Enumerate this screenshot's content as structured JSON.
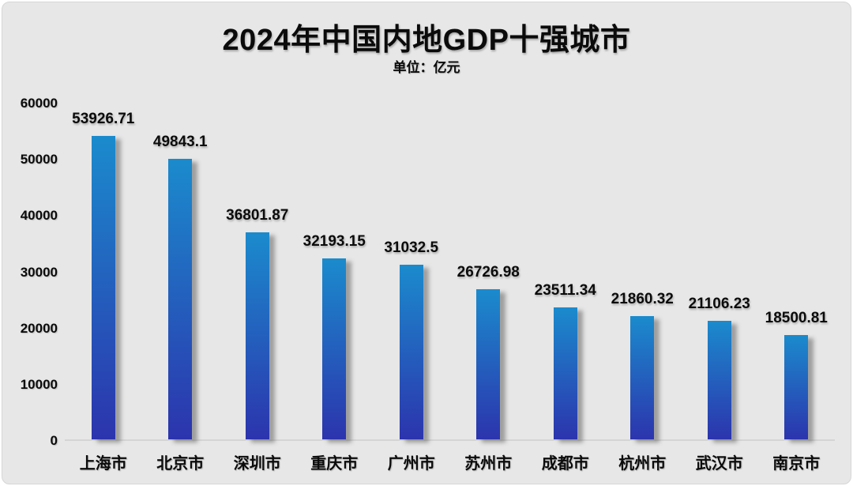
{
  "chart_data": {
    "type": "bar",
    "title": "2024年中国内地GDP十强城市",
    "subtitle": "单位：亿元",
    "categories": [
      "上海市",
      "北京市",
      "深圳市",
      "重庆市",
      "广州市",
      "苏州市",
      "成都市",
      "杭州市",
      "武汉市",
      "南京市"
    ],
    "values": [
      53926.71,
      49843.1,
      36801.87,
      32193.15,
      31032.5,
      26726.98,
      23511.34,
      21860.32,
      21106.23,
      18500.81
    ],
    "value_labels": [
      "53926.71",
      "49843.1",
      "36801.87",
      "32193.15",
      "31032.5",
      "26726.98",
      "23511.34",
      "21860.32",
      "21106.23",
      "18500.81"
    ],
    "xlabel": "",
    "ylabel": "",
    "ylim": [
      0,
      60000
    ],
    "yticks": [
      0,
      10000,
      20000,
      30000,
      40000,
      50000,
      60000
    ],
    "grid": false,
    "legend": "none",
    "colors": {
      "bar_gradient_top": "#1b8bcd",
      "bar_gradient_bottom": "#2c34ad",
      "panel_background": "#e7e7e7",
      "axis_line": "#d5d5d5",
      "text": "#0b0b0b"
    }
  }
}
